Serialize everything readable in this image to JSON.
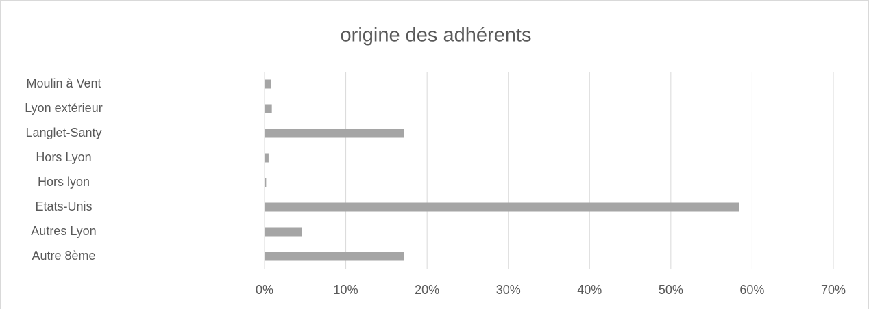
{
  "chart_data": {
    "type": "hbar",
    "title": "origine des adhérents",
    "categories": [
      "Moulin à Vent",
      "Lyon extérieur",
      "Langlet-Santy",
      "Hors Lyon",
      "Hors lyon",
      "Etats-Unis",
      "Autres Lyon",
      "Autre 8ème"
    ],
    "values": [
      0.8,
      0.9,
      17.2,
      0.5,
      0.2,
      58.4,
      4.6,
      17.2
    ],
    "color": "#a5a5a5",
    "xlim": [
      0,
      70
    ],
    "xticks": [
      {
        "value": 0,
        "label": "0%"
      },
      {
        "value": 10,
        "label": "10%"
      },
      {
        "value": 20,
        "label": "20%"
      },
      {
        "value": 30,
        "label": "30%"
      },
      {
        "value": 40,
        "label": "40%"
      },
      {
        "value": 50,
        "label": "50%"
      },
      {
        "value": 60,
        "label": "60%"
      },
      {
        "value": 70,
        "label": "70%"
      }
    ],
    "grid": true
  }
}
